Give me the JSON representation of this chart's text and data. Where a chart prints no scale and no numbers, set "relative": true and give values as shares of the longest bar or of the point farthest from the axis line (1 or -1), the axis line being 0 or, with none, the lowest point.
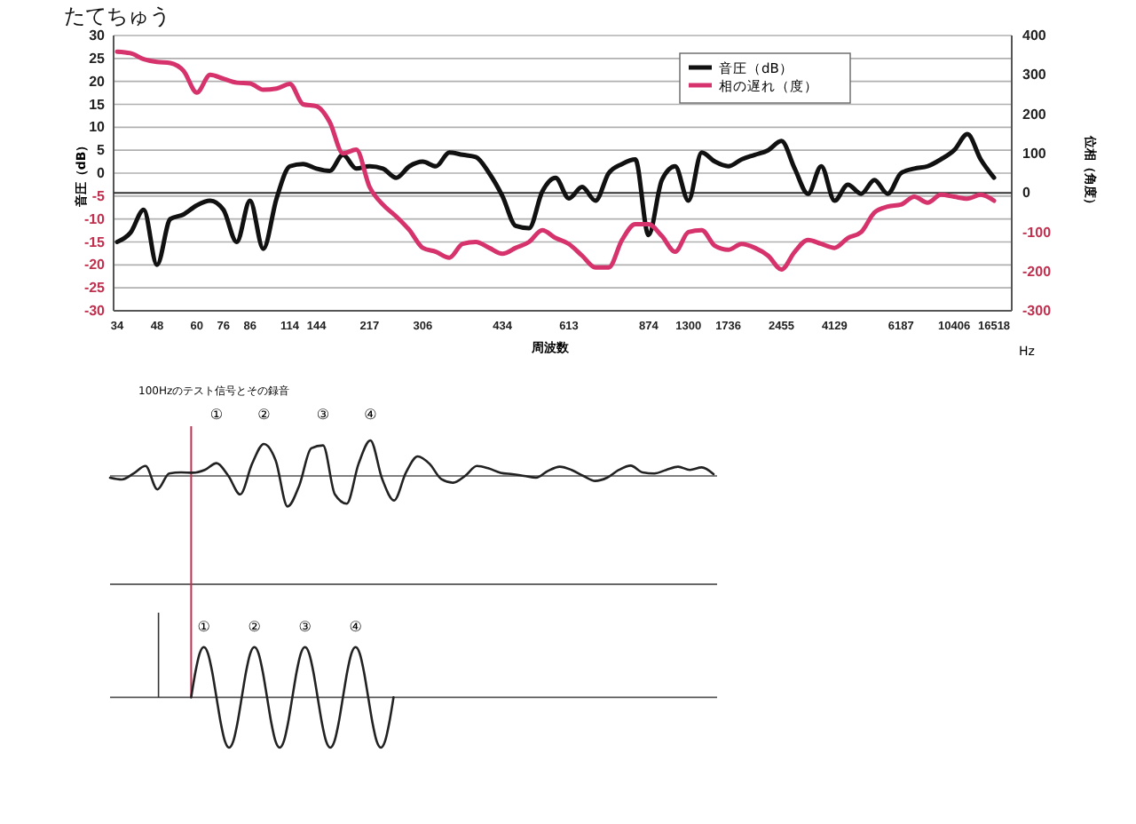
{
  "chart_data": [
    {
      "type": "line",
      "title": "たてちゅう",
      "xlabel": "周波数",
      "ylabel": "音圧（dB）",
      "y2label": "位相（角度）",
      "categories": [
        "34",
        null,
        null,
        "48",
        null,
        null,
        "60",
        null,
        "76",
        null,
        "86",
        null,
        null,
        "114",
        null,
        "144",
        null,
        null,
        null,
        "217",
        null,
        null,
        null,
        "306",
        null,
        null,
        null,
        null,
        null,
        "434",
        null,
        null,
        null,
        null,
        "613",
        null,
        null,
        null,
        null,
        null,
        "874",
        null,
        null,
        "1300",
        null,
        null,
        "1736",
        null,
        null,
        null,
        "2455",
        null,
        null,
        null,
        "4129",
        null,
        null,
        null,
        null,
        "6187",
        null,
        null,
        null,
        "10406",
        null,
        null,
        "16518"
      ],
      "series": [
        {
          "name": "音圧（dB）",
          "color": "#111111",
          "values": [
            -15,
            -13,
            -8,
            -20,
            -10,
            -9,
            -7,
            -6,
            -8,
            -15,
            -6,
            -16.5,
            -5.5,
            1.5,
            2,
            1,
            0.5,
            4,
            1,
            1.5,
            1,
            -1,
            1.5,
            2.5,
            1.5,
            4.5,
            4,
            3.5,
            0,
            -5,
            -11.5,
            -12,
            -4,
            -1,
            -5.5,
            -3,
            -6,
            0,
            2,
            3,
            -13.5,
            -1.5,
            1.5,
            -6,
            4.5,
            2.5,
            1.5,
            3,
            4,
            5,
            7,
            1,
            -4.5,
            1.5,
            -6,
            -2.5,
            -4.5,
            -1.5,
            -4.5,
            0,
            1,
            1.5,
            3,
            5,
            8.5,
            3,
            -1
          ]
        },
        {
          "name": "相の遅れ（度）",
          "color": "#d6336c",
          "axis": "y2",
          "values": [
            359,
            355,
            340,
            333,
            330,
            310,
            255,
            300,
            290,
            280,
            278,
            262,
            265,
            277,
            225,
            220,
            180,
            100,
            110,
            15,
            -30,
            -60,
            -95,
            -140,
            -150,
            -165,
            -130,
            -125,
            -140,
            -155,
            -140,
            -125,
            -95,
            -115,
            -130,
            -160,
            -190,
            -190,
            -120,
            -80,
            -80,
            -110,
            -150,
            -100,
            -95,
            -135,
            -145,
            -130,
            -140,
            -160,
            -195,
            -150,
            -120,
            -130,
            -140,
            -115,
            -100,
            -50,
            -35,
            -30,
            -10,
            -25,
            -5,
            -10,
            -15,
            -5,
            -20
          ]
        }
      ],
      "ylim": [
        -30,
        30
      ],
      "yticks": [
        -30,
        -25,
        -20,
        -15,
        -10,
        -5,
        0,
        5,
        10,
        15,
        20,
        25,
        30
      ],
      "y2lim": [
        -300,
        400
      ],
      "y2ticks": [
        -300,
        -200,
        -100,
        0,
        100,
        200,
        300,
        400
      ],
      "grid": "y",
      "legend": "top",
      "annotations": [
        "Hz"
      ]
    },
    {
      "type": "line",
      "title": "100Hzのテスト信号とその録音",
      "relative": true,
      "categories": [
        null,
        null,
        null,
        null,
        null,
        null,
        null,
        null,
        null,
        null,
        null,
        null,
        null,
        null,
        null,
        null,
        null,
        null,
        null,
        null,
        null,
        null,
        null,
        null,
        null,
        null,
        null,
        null,
        null,
        null,
        null,
        null,
        null,
        null,
        null,
        null,
        null,
        null,
        null,
        null,
        null,
        null,
        null,
        null,
        null,
        null,
        null,
        null,
        null,
        null,
        null,
        null
      ],
      "series": [
        {
          "color": "#222222",
          "values": [
            -0.05,
            -0.1,
            0.07,
            0.28,
            -0.38,
            0.07,
            0.1,
            0.09,
            0.17,
            0.36,
            0,
            -0.52,
            0.34,
            0.9,
            0.43,
            -0.86,
            -0.26,
            0.78,
            0.86,
            -0.52,
            -0.78,
            0.34,
            1,
            -0.09,
            -0.69,
            0.09,
            0.55,
            0.34,
            -0.09,
            -0.19,
            0,
            0.28,
            0.21,
            0.09,
            0.05,
            0,
            -0.05,
            0.14,
            0.26,
            0.17,
            0,
            -0.14,
            -0.05,
            0.17,
            0.29,
            0.1,
            0.07,
            0.17,
            0.26,
            0.17,
            0.24,
            0.05
          ]
        }
      ],
      "annotations": [
        "①",
        "②",
        "③",
        "④"
      ]
    },
    {
      "type": "line",
      "relative": true,
      "categories": [
        null,
        null,
        null,
        null,
        null,
        null,
        null,
        null,
        null,
        null,
        null,
        null,
        null,
        null,
        null,
        null,
        null,
        null,
        null,
        null,
        null,
        null,
        null,
        null,
        null,
        null,
        null,
        null,
        null,
        null,
        null,
        null,
        null,
        null,
        null,
        null,
        null,
        null,
        null,
        null,
        null,
        null,
        null,
        null,
        null,
        null,
        null,
        null,
        null
      ],
      "series": [
        {
          "color": "#222222",
          "values": [
            0,
            0.5,
            0.87,
            1,
            0.87,
            0.5,
            0,
            -0.5,
            -0.87,
            -1,
            -0.87,
            -0.5,
            0,
            0.5,
            0.87,
            1,
            0.87,
            0.5,
            0,
            -0.5,
            -0.87,
            -1,
            -0.87,
            -0.5,
            0,
            0.5,
            0.87,
            1,
            0.87,
            0.5,
            0,
            -0.5,
            -0.87,
            -1,
            -0.87,
            -0.5,
            0,
            0.5,
            0.87,
            1,
            0.87,
            0.5,
            0,
            -0.5,
            -0.87,
            -1,
            -0.87,
            -0.5,
            0
          ]
        }
      ],
      "annotations": [
        "①",
        "②",
        "③",
        "④"
      ]
    }
  ]
}
